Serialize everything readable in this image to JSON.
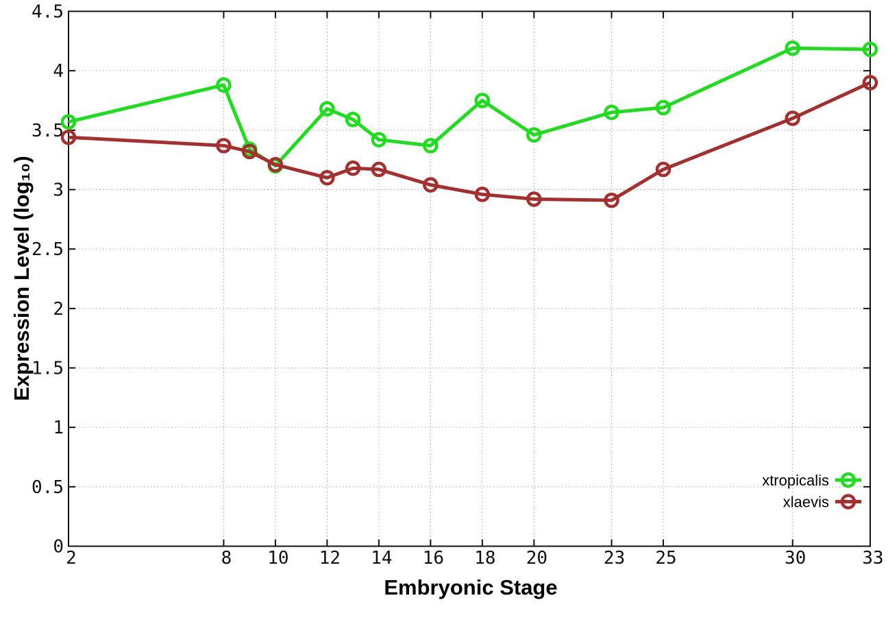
{
  "chart_data": {
    "type": "line",
    "title": "",
    "xlabel": "Embryonic Stage",
    "ylabel": "Expression Level (log₁₀)",
    "xlim": [
      2,
      33
    ],
    "ylim": [
      0,
      4.5
    ],
    "xticks": [
      2,
      8,
      10,
      12,
      14,
      16,
      18,
      20,
      23,
      25,
      30,
      33
    ],
    "yticks": [
      0,
      0.5,
      1,
      1.5,
      2,
      2.5,
      3,
      3.5,
      4,
      4.5
    ],
    "grid": true,
    "legend_position": "inside-bottom-right",
    "x": [
      2,
      8,
      9,
      10,
      12,
      13,
      14,
      16,
      18,
      20,
      23,
      25,
      30,
      33
    ],
    "series": [
      {
        "name": "xtropicalis",
        "color": "#1ddd1d",
        "marker": "open-circle",
        "values": [
          3.57,
          3.88,
          3.34,
          3.2,
          3.68,
          3.59,
          3.42,
          3.37,
          3.75,
          3.46,
          3.65,
          3.69,
          4.19,
          4.18
        ]
      },
      {
        "name": "xlaevis",
        "color": "#a52f2f",
        "marker": "open-circle",
        "values": [
          3.44,
          3.37,
          3.32,
          3.21,
          3.1,
          3.18,
          3.17,
          3.04,
          2.96,
          2.92,
          2.91,
          3.17,
          3.6,
          3.9
        ]
      }
    ]
  },
  "colors": {
    "background": "#ffffff",
    "axis": "#111111",
    "grid": "#a8a8a8",
    "text": "#000000"
  }
}
